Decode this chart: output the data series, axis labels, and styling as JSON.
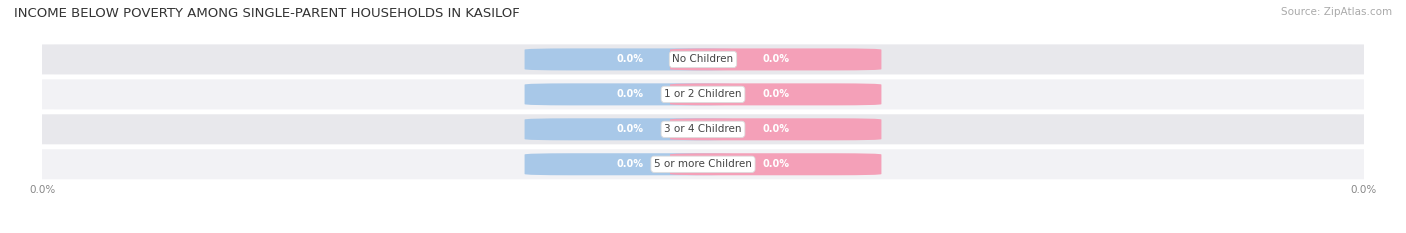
{
  "title": "INCOME BELOW POVERTY AMONG SINGLE-PARENT HOUSEHOLDS IN KASILOF",
  "source": "Source: ZipAtlas.com",
  "categories": [
    "No Children",
    "1 or 2 Children",
    "3 or 4 Children",
    "5 or more Children"
  ],
  "father_values": [
    0.0,
    0.0,
    0.0,
    0.0
  ],
  "mother_values": [
    0.0,
    0.0,
    0.0,
    0.0
  ],
  "father_color": "#a8c8e8",
  "mother_color": "#f4a0b8",
  "row_bg_color": "#e8e8ec",
  "row_bg_light": "#f2f2f5",
  "title_fontsize": 9.5,
  "source_fontsize": 7.5,
  "figsize": [
    14.06,
    2.33
  ],
  "dpi": 100
}
